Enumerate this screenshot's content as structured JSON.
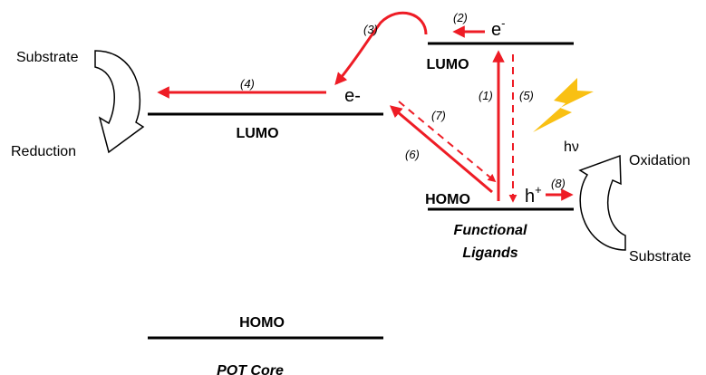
{
  "colors": {
    "arrow": "#ee1c25",
    "level": "#000000",
    "lightning": "#f9c013"
  },
  "labels": {
    "substrate_left": "Substrate",
    "reduction": "Reduction",
    "oxidation": "Oxidation",
    "substrate_right": "Substrate",
    "lumo_core": "LUMO",
    "lumo_ligand": "LUMO",
    "homo_ligand": "HOMO",
    "homo_core": "HOMO",
    "electron_core": "e-",
    "electron_ligand": "e",
    "electron_ligand_sup": "-",
    "hole": "h",
    "hole_sup": "+",
    "photon": "hν",
    "ligands_line1": "Functional",
    "ligands_line2": "Ligands",
    "core": "POT Core"
  },
  "steps": {
    "s1": "(1)",
    "s2": "(2)",
    "s3": "(3)",
    "s4": "(4)",
    "s5": "(5)",
    "s6": "(6)",
    "s7": "(7)",
    "s8": "(8)"
  },
  "icons": {
    "curved_arrow_left": "curved-arrow-icon",
    "curved_arrow_right": "curved-arrow-icon",
    "lightning": "lightning-bolt-icon"
  }
}
